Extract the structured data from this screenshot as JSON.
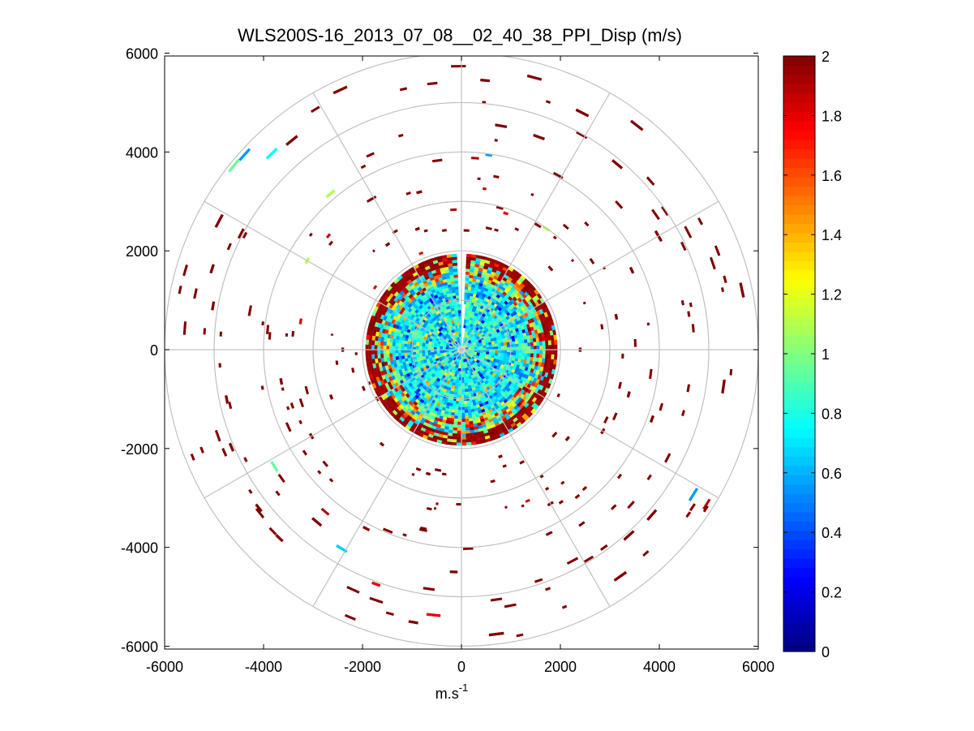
{
  "chart_data": {
    "type": "heatmap",
    "subtype": "polar-ppi",
    "title": "WLS200S-16_2013_07_08__02_40_38_PPI_Disp (m/s)",
    "xlabel_base": "m.s",
    "xlabel_exp": "-1",
    "ylabel": "",
    "xlim": [
      -6000,
      6000
    ],
    "ylim": [
      -6000,
      6000
    ],
    "x_ticks": [
      -6000,
      -4000,
      -2000,
      0,
      2000,
      4000,
      6000
    ],
    "y_ticks": [
      6000,
      4000,
      2000,
      0,
      -2000,
      -4000,
      -6000
    ],
    "x_tick_labels": [
      "-6000",
      "-4000",
      "-2000",
      "0",
      "2000",
      "4000",
      "6000"
    ],
    "y_tick_labels": [
      "6000",
      "4000",
      "2000",
      "0",
      "-2000",
      "-4000",
      "-6000"
    ],
    "polar_grid": {
      "rings": [
        1000,
        2000,
        3000,
        4000,
        5000,
        6000
      ],
      "spokes_deg": [
        0,
        30,
        60,
        90,
        120,
        150,
        180,
        210,
        240,
        270,
        300,
        330
      ],
      "color": "#c0c0c0"
    },
    "colorbar": {
      "colormap": "jet",
      "range": [
        0,
        2
      ],
      "ticks": [
        0,
        0.2,
        0.4,
        0.6,
        0.8,
        1,
        1.2,
        1.4,
        1.6,
        1.8,
        2
      ],
      "tick_labels": [
        "0",
        "0.2",
        "0.4",
        "0.6",
        "0.8",
        "1",
        "1.2",
        "1.4",
        "1.6",
        "1.8",
        "2"
      ]
    },
    "core": {
      "max_range": 1900,
      "gap_deg": [
        -4,
        2
      ],
      "typical_value": 0.75,
      "edge_value": 1.9
    },
    "segments": [
      {
        "r": 5800,
        "az": -25,
        "len": 3,
        "v": 2
      },
      {
        "r": 5450,
        "az": -39,
        "len": 3,
        "v": 2
      },
      {
        "r": 5520,
        "az": -44,
        "len": 3,
        "v": 0.75
      },
      {
        "r": 5900,
        "az": -48,
        "len": 3,
        "v": 0.55
      },
      {
        "r": 5920,
        "az": -51,
        "len": 3,
        "v": 0.95
      },
      {
        "r": 5550,
        "az": -62,
        "len": 3,
        "v": 2
      },
      {
        "r": 5300,
        "az": -72,
        "len": 2,
        "v": 2
      },
      {
        "r": 5100,
        "az": -80,
        "len": 2,
        "v": 2
      },
      {
        "r": 4850,
        "az": -102,
        "len": 2,
        "v": 2
      },
      {
        "r": 5050,
        "az": -113,
        "len": 2,
        "v": 2
      },
      {
        "r": 4460,
        "az": -122,
        "len": 3,
        "v": 0.95
      },
      {
        "r": 5200,
        "az": -128,
        "len": 2,
        "v": 2
      },
      {
        "r": 5300,
        "az": -136,
        "len": 2,
        "v": 2
      },
      {
        "r": 4550,
        "az": -140,
        "len": 3,
        "v": 2
      },
      {
        "r": 4700,
        "az": -149,
        "len": 3,
        "v": 0.65
      },
      {
        "r": 5050,
        "az": -160,
        "len": 2,
        "v": 1.8
      },
      {
        "r": 5400,
        "az": -174,
        "len": 3,
        "v": 1.8
      },
      {
        "r": 5800,
        "az": -187,
        "len": 3,
        "v": 2
      },
      {
        "r": 5600,
        "az": -170,
        "len": 2,
        "v": 2
      },
      {
        "r": 5470,
        "az": 5,
        "len": 2,
        "v": 2
      },
      {
        "r": 5700,
        "az": 15,
        "len": 3,
        "v": 2
      },
      {
        "r": 5380,
        "az": 27,
        "len": 3,
        "v": 2
      },
      {
        "r": 5760,
        "az": 38,
        "len": 3,
        "v": 2
      },
      {
        "r": 4900,
        "az": 40,
        "len": 3,
        "v": 2
      },
      {
        "r": 5800,
        "az": 78,
        "len": 3,
        "v": 2
      },
      {
        "r": 5350,
        "az": 98,
        "len": 3,
        "v": 2
      },
      {
        "r": 5600,
        "az": 145,
        "len": 3,
        "v": 2
      },
      {
        "r": 5060,
        "az": 138,
        "len": 3,
        "v": 2
      },
      {
        "r": 5530,
        "az": 122,
        "len": 3,
        "v": 0.55
      },
      {
        "r": 5100,
        "az": 131,
        "len": 3,
        "v": 2
      },
      {
        "r": 4030,
        "az": 29,
        "len": 3,
        "v": 2
      },
      {
        "r": 4580,
        "az": 20,
        "len": 3,
        "v": 2
      },
      {
        "r": 4600,
        "az": 10,
        "len": 3,
        "v": 2
      },
      {
        "r": 3980,
        "az": 8,
        "len": 2,
        "v": 0.55
      },
      {
        "r": 4120,
        "az": -40,
        "len": 3,
        "v": 1.1
      },
      {
        "r": 4600,
        "az": 60,
        "len": 3,
        "v": 2
      },
      {
        "r": 3800,
        "az": 65,
        "len": 2,
        "v": 2
      },
      {
        "r": 3600,
        "az": -60,
        "len": 2,
        "v": 1.1
      },
      {
        "r": 3300,
        "az": -80,
        "len": 2,
        "v": 1.8
      },
      {
        "r": 3700,
        "az": -100,
        "len": 2,
        "v": 2
      },
      {
        "r": 3500,
        "az": -120,
        "len": 2,
        "v": 2
      },
      {
        "r": 4100,
        "az": -152,
        "len": 2,
        "v": 2
      },
      {
        "r": 3700,
        "az": -168,
        "len": 2,
        "v": 2
      },
      {
        "r": 4500,
        "az": -178,
        "len": 2,
        "v": 2
      },
      {
        "r": 3600,
        "az": 150,
        "len": 2,
        "v": 2
      },
      {
        "r": 3300,
        "az": 120,
        "len": 2,
        "v": 2
      },
      {
        "r": 3500,
        "az": 105,
        "len": 2,
        "v": 2
      },
      {
        "r": 4100,
        "az": 110,
        "len": 2,
        "v": 2
      },
      {
        "r": 3200,
        "az": 78,
        "len": 2,
        "v": 2
      },
      {
        "r": 2990,
        "az": 35,
        "len": 3,
        "v": 1.1
      },
      {
        "r": 2900,
        "az": 18,
        "len": 2,
        "v": 1.8
      },
      {
        "r": 2600,
        "az": -20,
        "len": 2,
        "v": 2
      },
      {
        "r": 3300,
        "az": -15,
        "len": 2,
        "v": 2
      },
      {
        "r": 2600,
        "az": -35,
        "len": 2,
        "v": 2
      },
      {
        "r": 2400,
        "az": 90,
        "len": 2,
        "v": 2
      },
      {
        "r": 2800,
        "az": 130,
        "len": 2,
        "v": 2
      },
      {
        "r": 2400,
        "az": -90,
        "len": 2,
        "v": 2
      },
      {
        "r": 2800,
        "az": -110,
        "len": 2,
        "v": 2
      },
      {
        "r": 2500,
        "az": -140,
        "len": 2,
        "v": 2
      },
      {
        "r": 2300,
        "az": 160,
        "len": 2,
        "v": 2
      },
      {
        "r": 2600,
        "az": -165,
        "len": 2,
        "v": 2
      }
    ],
    "scatter_count": 170,
    "scatter_seed": 7,
    "scatter_r_range": [
      1950,
      5900
    ]
  }
}
